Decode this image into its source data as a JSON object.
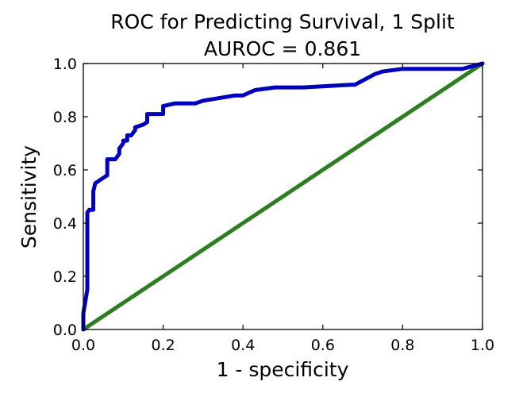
{
  "chart_data": {
    "type": "line",
    "title": "ROC for Predicting Survival, 1 Split",
    "subtitle": "AUROC = 0.861",
    "xlabel": "1 - specificity",
    "ylabel": "Sensitivity",
    "xlim": [
      0.0,
      1.0
    ],
    "ylim": [
      0.0,
      1.0
    ],
    "xticks": [
      "0.0",
      "0.2",
      "0.4",
      "0.6",
      "0.8",
      "1.0"
    ],
    "yticks": [
      "0.0",
      "0.2",
      "0.4",
      "0.6",
      "0.8",
      "1.0"
    ],
    "grid": false,
    "colors": {
      "roc": "#0000bb",
      "reference": "#2e7d22"
    },
    "series": [
      {
        "values_x": [
          0.0,
          0.0,
          0.01,
          0.01,
          0.015,
          0.015,
          0.025,
          0.025,
          0.03,
          0.04,
          0.05,
          0.06,
          0.06,
          0.065,
          0.08,
          0.09,
          0.09,
          0.1,
          0.1,
          0.11,
          0.11,
          0.12,
          0.13,
          0.13,
          0.15,
          0.16,
          0.16,
          0.2,
          0.2,
          0.23,
          0.28,
          0.3,
          0.34,
          0.38,
          0.4,
          0.43,
          0.48,
          0.55,
          0.67,
          0.68,
          0.73,
          0.75,
          0.8,
          0.95,
          1.0
        ],
        "values_y": [
          0.0,
          0.06,
          0.15,
          0.44,
          0.45,
          0.45,
          0.45,
          0.52,
          0.55,
          0.56,
          0.57,
          0.58,
          0.64,
          0.64,
          0.64,
          0.66,
          0.68,
          0.7,
          0.71,
          0.71,
          0.73,
          0.73,
          0.75,
          0.76,
          0.77,
          0.78,
          0.81,
          0.81,
          0.84,
          0.85,
          0.85,
          0.86,
          0.87,
          0.88,
          0.88,
          0.9,
          0.91,
          0.91,
          0.92,
          0.92,
          0.96,
          0.97,
          0.98,
          0.98,
          1.0
        ]
      },
      {
        "values_x": [
          0.0,
          1.0
        ],
        "values_y": [
          0.0,
          1.0
        ]
      }
    ]
  }
}
